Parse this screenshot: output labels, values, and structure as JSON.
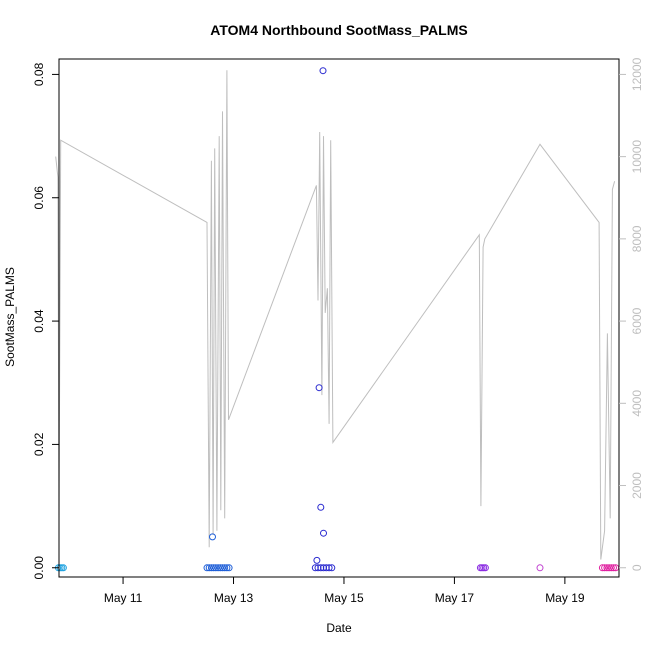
{
  "chart_data": {
    "type": "scatter",
    "title": "ATOM4 Northbound SootMass_PALMS",
    "xlabel": "Date",
    "ylabel": "SootMass_PALMS",
    "x_range_days": [
      9.84,
      19.98
    ],
    "x_ticks": [
      {
        "day": 11,
        "label": "May 11"
      },
      {
        "day": 13,
        "label": "May 13"
      },
      {
        "day": 15,
        "label": "May 15"
      },
      {
        "day": 17,
        "label": "May 17"
      },
      {
        "day": 19,
        "label": "May 19"
      }
    ],
    "ylim": [
      -0.0015,
      0.0825
    ],
    "y_ticks": [
      "0.00",
      "0.02",
      "0.04",
      "0.06",
      "0.08"
    ],
    "y2lim": [
      -225,
      12375
    ],
    "y2_ticks": [
      "0",
      "2000",
      "4000",
      "6000",
      "8000",
      "10000",
      "12000"
    ],
    "line_color": "#bebebe",
    "altitude_line": [
      [
        9.78,
        10000
      ],
      [
        9.82,
        9500
      ],
      [
        9.84,
        1200
      ],
      [
        9.87,
        10400
      ],
      [
        12.52,
        8400
      ],
      [
        12.56,
        500
      ],
      [
        12.6,
        9900
      ],
      [
        12.63,
        800
      ],
      [
        12.66,
        10200
      ],
      [
        12.7,
        900
      ],
      [
        12.74,
        10500
      ],
      [
        12.77,
        1400
      ],
      [
        12.8,
        11100
      ],
      [
        12.84,
        1200
      ],
      [
        12.88,
        12100
      ],
      [
        12.91,
        3600
      ],
      [
        14.5,
        9300
      ],
      [
        14.53,
        6500
      ],
      [
        14.56,
        10600
      ],
      [
        14.6,
        4200
      ],
      [
        14.63,
        10500
      ],
      [
        14.66,
        6200
      ],
      [
        14.7,
        6800
      ],
      [
        14.73,
        3500
      ],
      [
        14.76,
        10400
      ],
      [
        14.8,
        3050
      ],
      [
        17.45,
        8100
      ],
      [
        17.48,
        1500
      ],
      [
        17.52,
        7800
      ],
      [
        17.55,
        8000
      ],
      [
        18.55,
        10300
      ],
      [
        19.62,
        8400
      ],
      [
        19.65,
        200
      ],
      [
        19.72,
        900
      ],
      [
        19.77,
        5700
      ],
      [
        19.82,
        1200
      ],
      [
        19.86,
        9200
      ],
      [
        19.9,
        9400
      ]
    ],
    "points": [
      {
        "x": 9.83,
        "y": 0.0,
        "color": "#22a3e0"
      },
      {
        "x": 9.86,
        "y": 0.0,
        "color": "#22a3e0"
      },
      {
        "x": 9.89,
        "y": 0.0,
        "color": "#22a3e0"
      },
      {
        "x": 9.92,
        "y": 0.0,
        "color": "#22a3e0"
      },
      {
        "x": 12.52,
        "y": 0.0,
        "color": "#1f5fd8"
      },
      {
        "x": 12.56,
        "y": 0.0,
        "color": "#1f5fd8"
      },
      {
        "x": 12.6,
        "y": 0.0,
        "color": "#1f5fd8"
      },
      {
        "x": 12.64,
        "y": 0.0,
        "color": "#1f5fd8"
      },
      {
        "x": 12.68,
        "y": 0.0,
        "color": "#1f5fd8"
      },
      {
        "x": 12.72,
        "y": 0.0,
        "color": "#1f5fd8"
      },
      {
        "x": 12.76,
        "y": 0.0,
        "color": "#1f5fd8"
      },
      {
        "x": 12.8,
        "y": 0.0,
        "color": "#1f5fd8"
      },
      {
        "x": 12.84,
        "y": 0.0,
        "color": "#1f5fd8"
      },
      {
        "x": 12.88,
        "y": 0.0,
        "color": "#1f5fd8"
      },
      {
        "x": 12.92,
        "y": 0.0,
        "color": "#1f5fd8"
      },
      {
        "x": 12.62,
        "y": 0.005,
        "color": "#1f5fd8"
      },
      {
        "x": 14.48,
        "y": 0.0,
        "color": "#2a2ad0"
      },
      {
        "x": 14.53,
        "y": 0.0,
        "color": "#2a2ad0"
      },
      {
        "x": 14.58,
        "y": 0.0,
        "color": "#2a2ad0"
      },
      {
        "x": 14.63,
        "y": 0.0,
        "color": "#2a2ad0"
      },
      {
        "x": 14.68,
        "y": 0.0,
        "color": "#2a2ad0"
      },
      {
        "x": 14.73,
        "y": 0.0,
        "color": "#2a2ad0"
      },
      {
        "x": 14.78,
        "y": 0.0,
        "color": "#2a2ad0"
      },
      {
        "x": 14.51,
        "y": 0.0012,
        "color": "#2a2ad0"
      },
      {
        "x": 14.55,
        "y": 0.0292,
        "color": "#2a2ad0"
      },
      {
        "x": 14.58,
        "y": 0.0098,
        "color": "#2a2ad0"
      },
      {
        "x": 14.63,
        "y": 0.0056,
        "color": "#2a2ad0"
      },
      {
        "x": 14.62,
        "y": 0.0806,
        "color": "#2a2ad0"
      },
      {
        "x": 17.47,
        "y": 0.0,
        "color": "#8a2be2"
      },
      {
        "x": 17.5,
        "y": 0.0,
        "color": "#8a2be2"
      },
      {
        "x": 17.53,
        "y": 0.0,
        "color": "#8a2be2"
      },
      {
        "x": 17.56,
        "y": 0.0,
        "color": "#8a2be2"
      },
      {
        "x": 18.55,
        "y": 0.0,
        "color": "#c040d0"
      },
      {
        "x": 19.68,
        "y": 0.0,
        "color": "#e020a0"
      },
      {
        "x": 19.72,
        "y": 0.0,
        "color": "#e020a0"
      },
      {
        "x": 19.76,
        "y": 0.0,
        "color": "#e020a0"
      },
      {
        "x": 19.8,
        "y": 0.0,
        "color": "#e020a0"
      },
      {
        "x": 19.84,
        "y": 0.0,
        "color": "#e020a0"
      },
      {
        "x": 19.88,
        "y": 0.0,
        "color": "#e020a0"
      },
      {
        "x": 19.92,
        "y": 0.0,
        "color": "#e020a0"
      }
    ]
  }
}
